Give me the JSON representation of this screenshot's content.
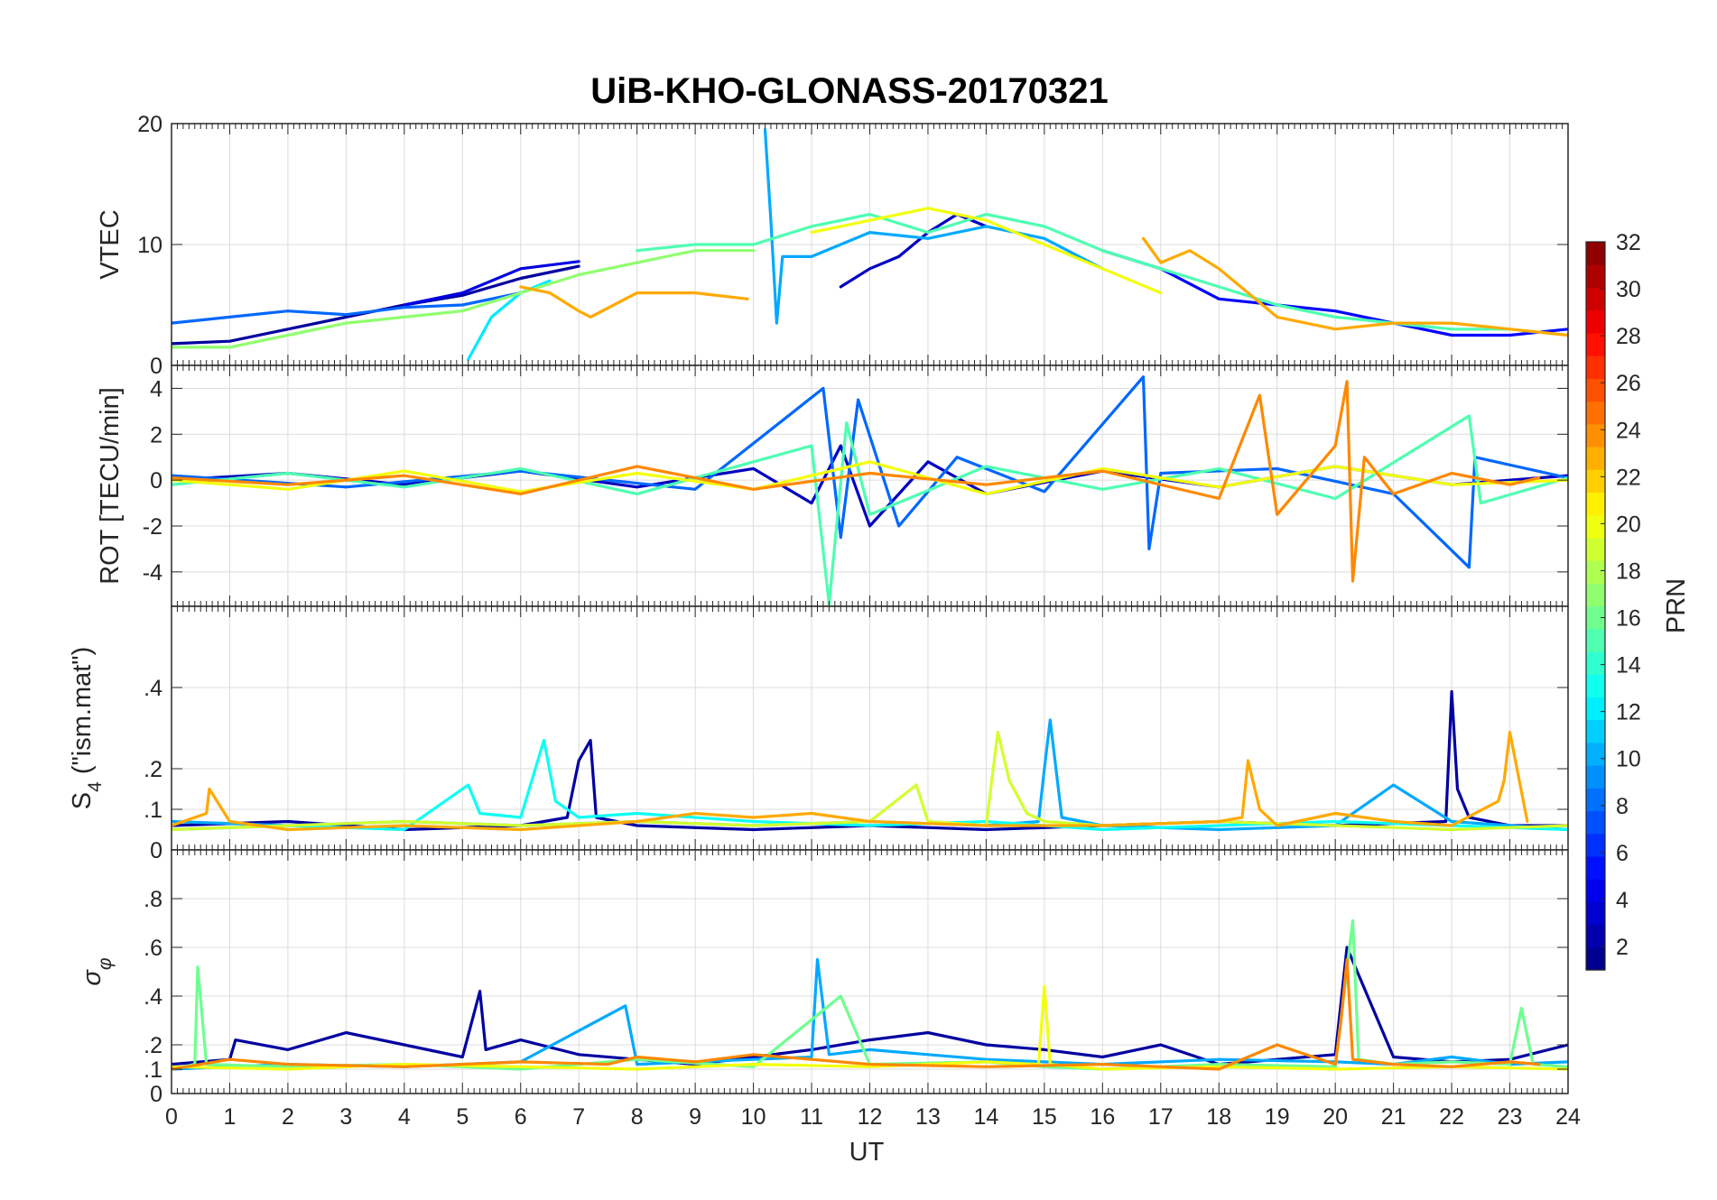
{
  "chart_data": {
    "type": "line",
    "title": "UiB-KHO-GLONASS-20170321",
    "xlabel": "UT",
    "xlim": [
      0,
      24
    ],
    "xticks": [
      0,
      1,
      2,
      3,
      4,
      5,
      6,
      7,
      8,
      9,
      10,
      11,
      12,
      13,
      14,
      15,
      16,
      17,
      18,
      19,
      20,
      21,
      22,
      23,
      24
    ],
    "grid": true,
    "colorbar": {
      "label": "PRN",
      "range": [
        1,
        32
      ],
      "ticks": [
        2,
        4,
        6,
        8,
        10,
        12,
        14,
        16,
        18,
        20,
        22,
        24,
        26,
        28,
        30,
        32
      ],
      "colormap": "jet"
    },
    "panels": [
      {
        "id": "vtec",
        "ylabel": "VTEC",
        "ylim": [
          0,
          20
        ],
        "yticks": [
          0,
          10,
          20
        ],
        "series": [
          {
            "prn": 2,
            "x": [
              0,
              1,
              2,
              3,
              4,
              5,
              6,
              7
            ],
            "y": [
              1.8,
              2.0,
              3.0,
              4.0,
              5.0,
              5.8,
              7.2,
              8.2
            ]
          },
          {
            "prn": 4,
            "x": [
              4,
              5,
              6,
              7
            ],
            "y": [
              5.0,
              6.0,
              8.0,
              8.6
            ]
          },
          {
            "prn": 3,
            "x": [
              11.5,
              12,
              12.5,
              13,
              13.5,
              14
            ],
            "y": [
              6.5,
              8.0,
              9.0,
              11.0,
              12.5,
              11.5
            ]
          },
          {
            "prn": 5,
            "x": [
              16,
              17,
              18,
              19,
              20,
              21,
              22,
              23,
              24
            ],
            "y": [
              9.5,
              8.0,
              5.5,
              5.0,
              4.5,
              3.5,
              2.5,
              2.5,
              3.0
            ]
          },
          {
            "prn": 8,
            "x": [
              0,
              1,
              2,
              3,
              4,
              5,
              6
            ],
            "y": [
              3.5,
              4.0,
              4.5,
              4.2,
              4.8,
              5.0,
              6.0
            ]
          },
          {
            "prn": 10,
            "x": [
              10.2,
              10.3,
              10.4,
              10.5,
              11,
              12,
              13,
              14,
              15,
              16
            ],
            "y": [
              19.5,
              12.0,
              3.5,
              9.0,
              9.0,
              11.0,
              10.5,
              11.5,
              10.5,
              8.0
            ]
          },
          {
            "prn": 12,
            "x": [
              5.1,
              5.5,
              6,
              6.5
            ],
            "y": [
              0.5,
              4.0,
              6.0,
              7.0
            ]
          },
          {
            "prn": 15,
            "x": [
              8,
              9,
              10,
              11,
              12,
              13,
              14,
              15,
              16,
              17,
              18,
              19,
              20,
              21,
              22,
              23,
              24
            ],
            "y": [
              9.5,
              10.0,
              10.0,
              11.5,
              12.5,
              11.0,
              12.5,
              11.5,
              9.5,
              8.0,
              6.5,
              5.0,
              4.0,
              3.5,
              3.0,
              3.0,
              2.5
            ]
          },
          {
            "prn": 17,
            "x": [
              0,
              1,
              2,
              3,
              4,
              5,
              6,
              7,
              8,
              9,
              10
            ],
            "y": [
              1.5,
              1.5,
              2.5,
              3.5,
              4.0,
              4.5,
              6.0,
              7.5,
              8.5,
              9.5,
              9.5
            ]
          },
          {
            "prn": 20,
            "x": [
              11,
              12,
              13,
              14,
              15,
              16,
              17
            ],
            "y": [
              11.0,
              12.0,
              13.0,
              12.0,
              10.0,
              8.0,
              6.0
            ]
          },
          {
            "prn": 23,
            "x": [
              6,
              6.5,
              7,
              7.2,
              8,
              9,
              9.9
            ],
            "y": [
              6.5,
              6.0,
              4.5,
              4.0,
              6.0,
              6.0,
              5.5
            ]
          },
          {
            "prn": 23,
            "x": [
              16.7,
              17,
              17.5,
              18,
              19,
              20,
              21,
              22,
              23,
              24
            ],
            "y": [
              10.5,
              8.5,
              9.5,
              8.0,
              4.0,
              3.0,
              3.5,
              3.5,
              3.0,
              2.5
            ]
          }
        ]
      },
      {
        "id": "rot",
        "ylabel": "ROT [TECU/min]",
        "ylim": [
          -5.5,
          5
        ],
        "yticks": [
          -4,
          -2,
          0,
          2,
          4
        ],
        "series": [
          {
            "prn": 3,
            "x": [
              0,
              2,
              4,
              6,
              8,
              10,
              11,
              11.5,
              12,
              13,
              14,
              16,
              18,
              20,
              22,
              24
            ],
            "y": [
              0,
              0.3,
              -0.2,
              0.4,
              -0.3,
              0.5,
              -1.0,
              1.5,
              -2.0,
              0.8,
              -0.6,
              0.4,
              -0.3,
              0.6,
              -0.2,
              0.2
            ]
          },
          {
            "prn": 8,
            "x": [
              0,
              3,
              6,
              9,
              11.2,
              11.5,
              11.8,
              12.5,
              13.5,
              15,
              16.7,
              16.8,
              17,
              19,
              21,
              22.3,
              22.4,
              24
            ],
            "y": [
              0.2,
              -0.3,
              0.4,
              -0.4,
              4.0,
              -2.5,
              3.5,
              -2.0,
              1.0,
              -0.5,
              4.5,
              -3.0,
              0.3,
              0.5,
              -0.6,
              -3.8,
              1.0,
              0.1
            ]
          },
          {
            "prn": 15,
            "x": [
              0,
              2,
              4,
              6,
              8,
              10,
              11,
              11.3,
              11.6,
              12,
              14,
              16,
              18,
              20,
              22.3,
              22.5,
              24
            ],
            "y": [
              -0.2,
              0.3,
              -0.3,
              0.5,
              -0.6,
              0.8,
              1.5,
              -5.4,
              2.5,
              -1.5,
              0.6,
              -0.4,
              0.5,
              -0.8,
              2.8,
              -1.0,
              0.1
            ]
          },
          {
            "prn": 20,
            "x": [
              0,
              2,
              4,
              6,
              8,
              10,
              12,
              14,
              16,
              18,
              20,
              22,
              24
            ],
            "y": [
              0,
              -0.4,
              0.4,
              -0.5,
              0.3,
              -0.4,
              0.8,
              -0.6,
              0.5,
              -0.3,
              0.6,
              -0.2,
              0
            ]
          },
          {
            "prn": 24,
            "x": [
              0,
              2,
              4,
              6,
              8,
              10,
              12,
              14,
              16,
              18,
              18.7,
              19,
              20,
              20.2,
              20.3,
              20.5,
              21,
              22,
              23,
              23.5
            ],
            "y": [
              0.1,
              -0.2,
              0.2,
              -0.6,
              0.6,
              -0.4,
              0.3,
              -0.2,
              0.4,
              -0.8,
              3.7,
              -1.5,
              1.5,
              4.3,
              -4.4,
              1.0,
              -0.6,
              0.3,
              -0.2,
              0.1
            ]
          }
        ]
      },
      {
        "id": "s4",
        "ylabel": "S4 (\"ism.mat\")",
        "ylabel_main": "S",
        "ylabel_sub": "4",
        "ylabel_rest": " (\"ism.mat\")",
        "ylim": [
          0,
          0.6
        ],
        "yticks": [
          0,
          0.1,
          0.2,
          0.4
        ],
        "series": [
          {
            "prn": 2,
            "x": [
              0,
              2,
              4,
              6,
              6.8,
              7.0,
              7.2,
              7.3,
              8,
              10,
              12,
              14,
              16,
              18,
              20,
              21.9,
              22.0,
              22.1,
              22.3,
              23,
              24
            ],
            "y": [
              0.06,
              0.07,
              0.05,
              0.06,
              0.08,
              0.22,
              0.27,
              0.08,
              0.06,
              0.05,
              0.06,
              0.05,
              0.06,
              0.07,
              0.06,
              0.07,
              0.39,
              0.15,
              0.08,
              0.06,
              0.06
            ]
          },
          {
            "prn": 10,
            "x": [
              0,
              2,
              4,
              6,
              8,
              10,
              12,
              14,
              14.9,
              15.0,
              15.1,
              15.3,
              16,
              18,
              20,
              21,
              22,
              24
            ],
            "y": [
              0.07,
              0.06,
              0.07,
              0.06,
              0.07,
              0.06,
              0.07,
              0.06,
              0.07,
              0.2,
              0.32,
              0.08,
              0.06,
              0.05,
              0.06,
              0.16,
              0.07,
              0.05
            ]
          },
          {
            "prn": 13,
            "x": [
              0,
              2,
              4,
              5.1,
              5.3,
              6,
              6.4,
              6.6,
              7,
              8,
              10,
              12,
              14,
              16,
              18,
              20,
              22,
              24
            ],
            "y": [
              0.05,
              0.06,
              0.05,
              0.16,
              0.09,
              0.08,
              0.27,
              0.12,
              0.08,
              0.09,
              0.07,
              0.06,
              0.07,
              0.05,
              0.06,
              0.07,
              0.06,
              0.05
            ]
          },
          {
            "prn": 19,
            "x": [
              0,
              2,
              4,
              6,
              8,
              10,
              12,
              12.8,
              13,
              14,
              14.2,
              14.4,
              14.7,
              15,
              16,
              18,
              20,
              22,
              24
            ],
            "y": [
              0.05,
              0.06,
              0.07,
              0.06,
              0.07,
              0.06,
              0.07,
              0.16,
              0.07,
              0.06,
              0.29,
              0.17,
              0.09,
              0.07,
              0.06,
              0.07,
              0.06,
              0.05,
              0.06
            ]
          },
          {
            "prn": 23,
            "x": [
              0,
              0.6,
              0.65,
              1,
              2,
              4,
              6,
              8,
              9,
              10,
              11,
              12,
              14,
              16,
              18,
              18.4,
              18.5,
              18.7,
              19,
              20,
              21,
              22,
              22.8,
              22.9,
              23,
              23.3
            ],
            "y": [
              0.06,
              0.09,
              0.15,
              0.07,
              0.05,
              0.06,
              0.05,
              0.07,
              0.09,
              0.08,
              0.09,
              0.07,
              0.06,
              0.06,
              0.07,
              0.08,
              0.22,
              0.1,
              0.06,
              0.09,
              0.07,
              0.06,
              0.12,
              0.17,
              0.29,
              0.07
            ]
          }
        ]
      },
      {
        "id": "sigma",
        "ylabel": "σφ",
        "ylabel_main": "σ",
        "ylabel_sub": "φ",
        "ylim": [
          0,
          1
        ],
        "yticks": [
          0,
          0.1,
          0.2,
          0.4,
          0.6,
          0.8
        ],
        "series": [
          {
            "prn": 2,
            "x": [
              0,
              1,
              1.1,
              2,
              3,
              4,
              5,
              5.3,
              5.4,
              6,
              7,
              8,
              9,
              10,
              11,
              12,
              13,
              14,
              15,
              16,
              17,
              18,
              19,
              20,
              20.2,
              21,
              22,
              23,
              24
            ],
            "y": [
              0.12,
              0.14,
              0.22,
              0.18,
              0.25,
              0.2,
              0.15,
              0.42,
              0.18,
              0.22,
              0.16,
              0.14,
              0.12,
              0.15,
              0.18,
              0.22,
              0.25,
              0.2,
              0.18,
              0.15,
              0.2,
              0.12,
              0.14,
              0.16,
              0.6,
              0.15,
              0.13,
              0.14,
              0.2
            ]
          },
          {
            "prn": 10,
            "x": [
              0,
              2,
              4,
              6,
              7.8,
              8,
              10,
              11,
              11.1,
              11.3,
              12,
              14,
              15,
              16,
              18,
              20,
              21,
              22,
              23,
              24
            ],
            "y": [
              0.1,
              0.12,
              0.11,
              0.13,
              0.36,
              0.12,
              0.14,
              0.15,
              0.55,
              0.16,
              0.18,
              0.14,
              0.13,
              0.12,
              0.14,
              0.13,
              0.12,
              0.15,
              0.12,
              0.13
            ]
          },
          {
            "prn": 16,
            "x": [
              0,
              0.4,
              0.45,
              0.6,
              2,
              4,
              6,
              8,
              10,
              11.5,
              12,
              14,
              15,
              16,
              18,
              20,
              20.3,
              20.4,
              21,
              22,
              23,
              23.2,
              23.4,
              24
            ],
            "y": [
              0.1,
              0.12,
              0.52,
              0.12,
              0.11,
              0.12,
              0.1,
              0.14,
              0.11,
              0.4,
              0.12,
              0.13,
              0.11,
              0.1,
              0.12,
              0.11,
              0.71,
              0.14,
              0.12,
              0.13,
              0.12,
              0.35,
              0.12,
              0.11
            ]
          },
          {
            "prn": 20,
            "x": [
              0,
              2,
              4,
              6,
              8,
              10,
              12,
              14,
              14.9,
              15.0,
              15.1,
              16,
              18,
              20,
              22,
              24
            ],
            "y": [
              0.11,
              0.1,
              0.12,
              0.11,
              0.1,
              0.12,
              0.11,
              0.13,
              0.12,
              0.44,
              0.12,
              0.1,
              0.11,
              0.1,
              0.11,
              0.1
            ]
          },
          {
            "prn": 24,
            "x": [
              0,
              1,
              2,
              4,
              6,
              7.5,
              8,
              9,
              10,
              11,
              12,
              14,
              16,
              18,
              19,
              20,
              20.1,
              20.2,
              20.3,
              21,
              22,
              23,
              23.5
            ],
            "y": [
              0.1,
              0.14,
              0.12,
              0.11,
              0.13,
              0.12,
              0.15,
              0.13,
              0.16,
              0.14,
              0.12,
              0.11,
              0.12,
              0.1,
              0.2,
              0.12,
              0.3,
              0.55,
              0.14,
              0.12,
              0.11,
              0.13,
              0.12
            ]
          }
        ]
      }
    ]
  }
}
